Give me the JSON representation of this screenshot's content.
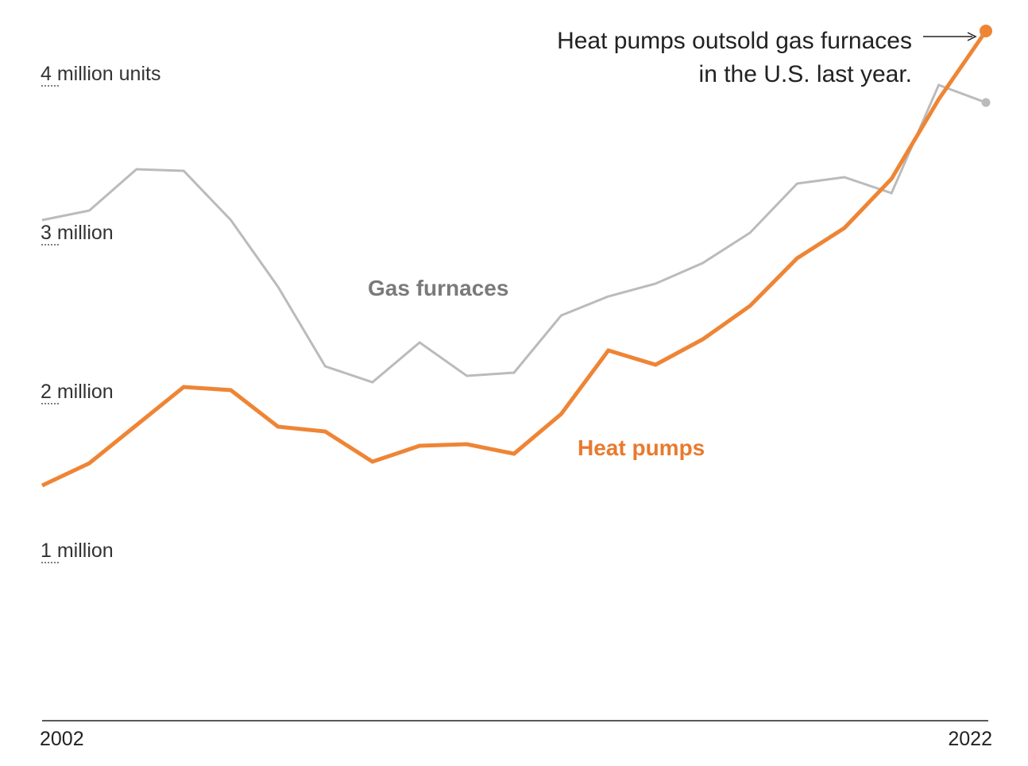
{
  "chart_data": {
    "type": "line",
    "x": [
      2002,
      2003,
      2004,
      2005,
      2006,
      2007,
      2008,
      2009,
      2010,
      2011,
      2012,
      2013,
      2014,
      2015,
      2016,
      2017,
      2018,
      2019,
      2020,
      2021,
      2022
    ],
    "x_tick_labels": [
      "2002",
      "2022"
    ],
    "ylim": [
      0,
      4.3
    ],
    "y_ticks": [
      {
        "value": 1,
        "label": "1 million"
      },
      {
        "value": 2,
        "label": "2 million"
      },
      {
        "value": 3,
        "label": "3 million"
      },
      {
        "value": 4,
        "label": "4 million units"
      }
    ],
    "grid": false,
    "series": [
      {
        "name": "Gas furnaces",
        "color": "#bbbbbb",
        "label_color": "#7a7a7a",
        "values": [
          3.15,
          3.21,
          3.47,
          3.46,
          3.15,
          2.73,
          2.23,
          2.13,
          2.38,
          2.17,
          2.19,
          2.55,
          2.67,
          2.75,
          2.88,
          3.07,
          3.38,
          3.42,
          3.32,
          4.0,
          3.89
        ]
      },
      {
        "name": "Heat pumps",
        "color": "#ee8535",
        "label_color": "#e87a2e",
        "values": [
          1.48,
          1.62,
          1.86,
          2.1,
          2.08,
          1.85,
          1.82,
          1.63,
          1.73,
          1.74,
          1.68,
          1.93,
          2.33,
          2.24,
          2.4,
          2.61,
          2.91,
          3.1,
          3.41,
          3.91,
          4.34
        ]
      }
    ],
    "annotation": {
      "lines": [
        "Heat pumps outsold gas furnaces",
        "in the U.S. last year."
      ]
    }
  }
}
